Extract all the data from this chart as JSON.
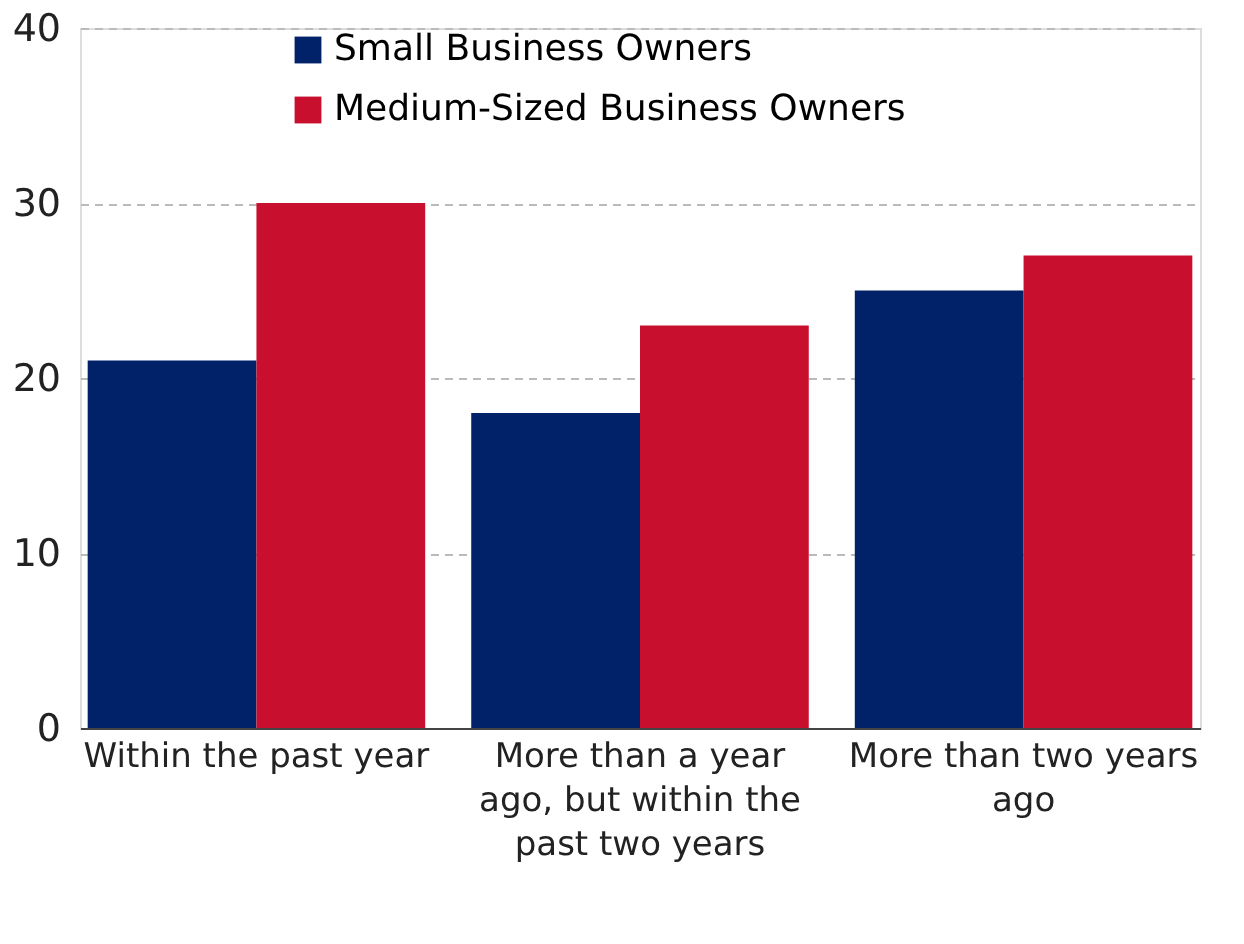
{
  "chart_data": {
    "type": "bar",
    "categories": [
      "Within the past year",
      "More than a year ago, but within the past two years",
      "More than two years ago"
    ],
    "series": [
      {
        "name": "Small Business Owners",
        "color": "#012169",
        "values": [
          21,
          18,
          25
        ]
      },
      {
        "name": "Medium-Sized Business Owners",
        "color": "#c8102e",
        "values": [
          30,
          23,
          27
        ]
      }
    ],
    "ylim": [
      0,
      40
    ],
    "yticks": [
      0,
      10,
      20,
      30,
      40
    ],
    "grid": "y",
    "legend": "top left"
  }
}
